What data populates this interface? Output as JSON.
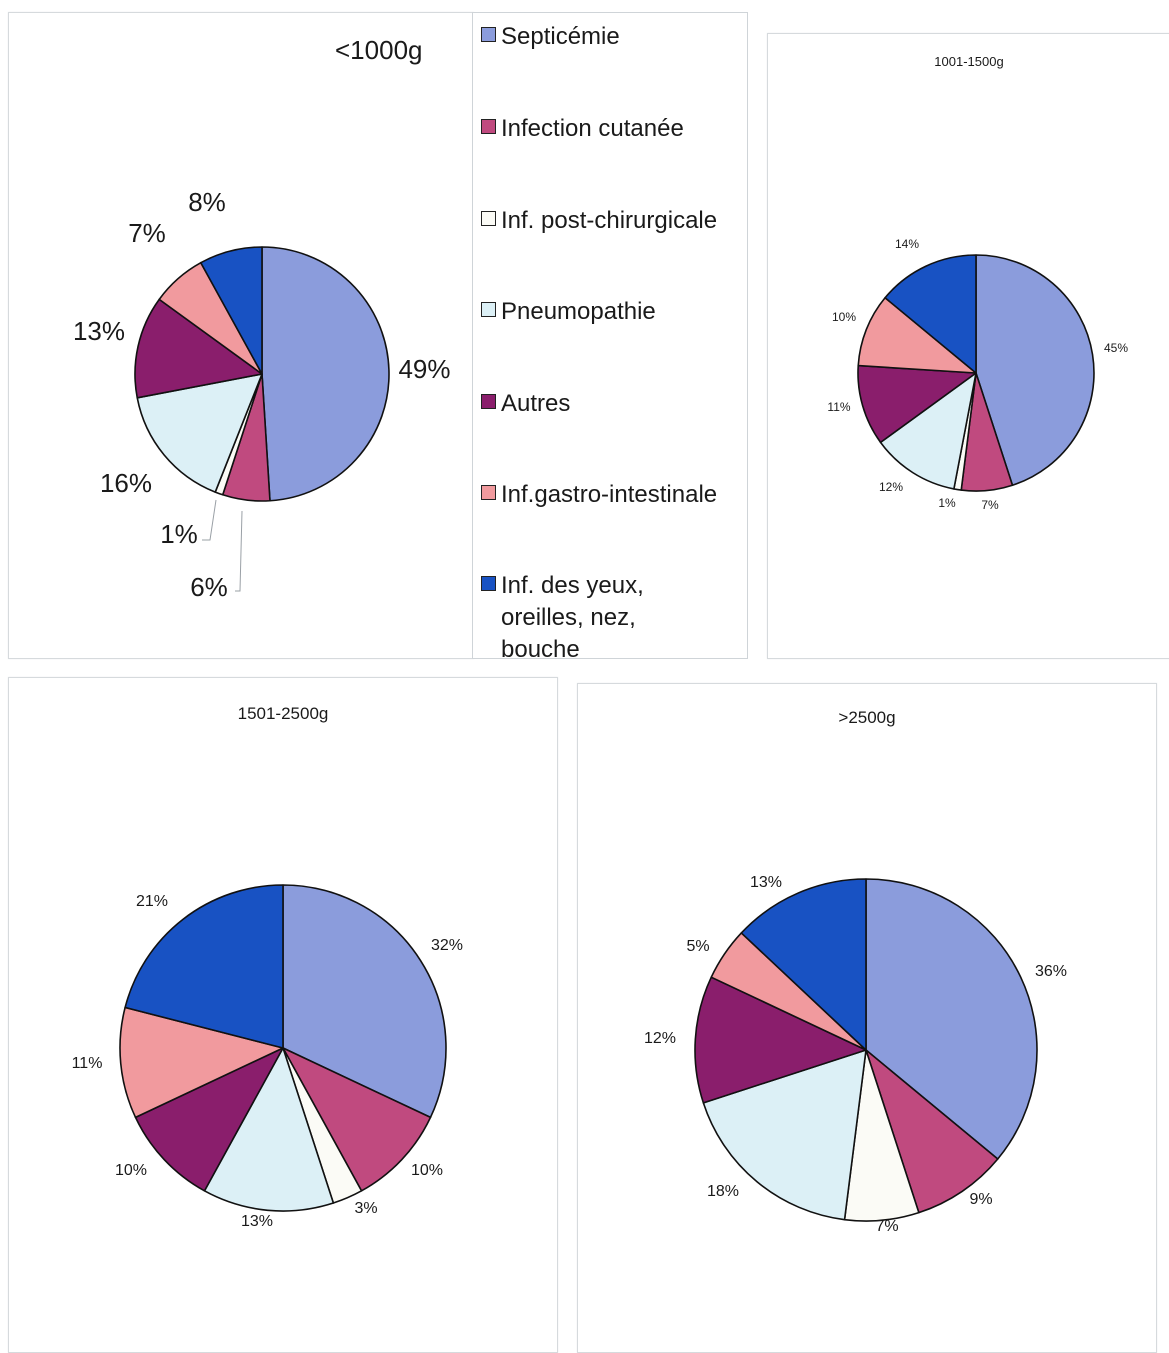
{
  "legend": {
    "items": [
      {
        "label": "Septicémie",
        "color": "#8b9cdc"
      },
      {
        "label": "Infection cutanée",
        "color": "#c04a7f"
      },
      {
        "label": "Inf. post-chirurgicale",
        "color": "#fbfbf6"
      },
      {
        "label": "Pneumopathie",
        "color": "#dcf0f6"
      },
      {
        "label": "Autres",
        "color": "#8a1e6c"
      },
      {
        "label": "Inf.gastro-intestinale",
        "color": "#f19a9e"
      },
      {
        "label": "Inf. des yeux, oreilles, nez, bouche",
        "color": "#1852c3"
      }
    ]
  },
  "chart_data": [
    {
      "type": "pie",
      "title": "<1000g",
      "categories": [
        "Septicémie",
        "Infection cutanée",
        "Inf. post-chirurgicale",
        "Pneumopathie",
        "Autres",
        "Inf.gastro-intestinale",
        "Inf. des yeux, oreilles, nez, bouche"
      ],
      "values": [
        49,
        6,
        1,
        16,
        13,
        7,
        8
      ],
      "labels": [
        "49%",
        "6%",
        "1%",
        "16%",
        "13%",
        "7%",
        "8%"
      ]
    },
    {
      "type": "pie",
      "title": "1001-1500g",
      "categories": [
        "Septicémie",
        "Infection cutanée",
        "Inf. post-chirurgicale",
        "Pneumopathie",
        "Autres",
        "Inf.gastro-intestinale",
        "Inf. des yeux, oreilles, nez, bouche"
      ],
      "values": [
        45,
        7,
        1,
        12,
        11,
        10,
        14
      ],
      "labels": [
        "45%",
        "7%",
        "1%",
        "12%",
        "11%",
        "10%",
        "14%"
      ]
    },
    {
      "type": "pie",
      "title": "1501-2500g",
      "categories": [
        "Septicémie",
        "Infection cutanée",
        "Inf. post-chirurgicale",
        "Pneumopathie",
        "Autres",
        "Inf.gastro-intestinale",
        "Inf. des yeux, oreilles, nez, bouche"
      ],
      "values": [
        32,
        10,
        3,
        13,
        10,
        11,
        21
      ],
      "labels": [
        "32%",
        "10%",
        "3%",
        "13%",
        "10%",
        "11%",
        "21%"
      ]
    },
    {
      "type": "pie",
      "title": ">2500g",
      "categories": [
        "Septicémie",
        "Infection cutanée",
        "Inf. post-chirurgicale",
        "Pneumopathie",
        "Autres",
        "Inf.gastro-intestinale",
        "Inf. des yeux, oreilles, nez, bouche"
      ],
      "values": [
        36,
        9,
        7,
        18,
        12,
        5,
        13
      ],
      "labels": [
        "36%",
        "9%",
        "7%",
        "18%",
        "12%",
        "5%",
        "13%"
      ]
    }
  ]
}
